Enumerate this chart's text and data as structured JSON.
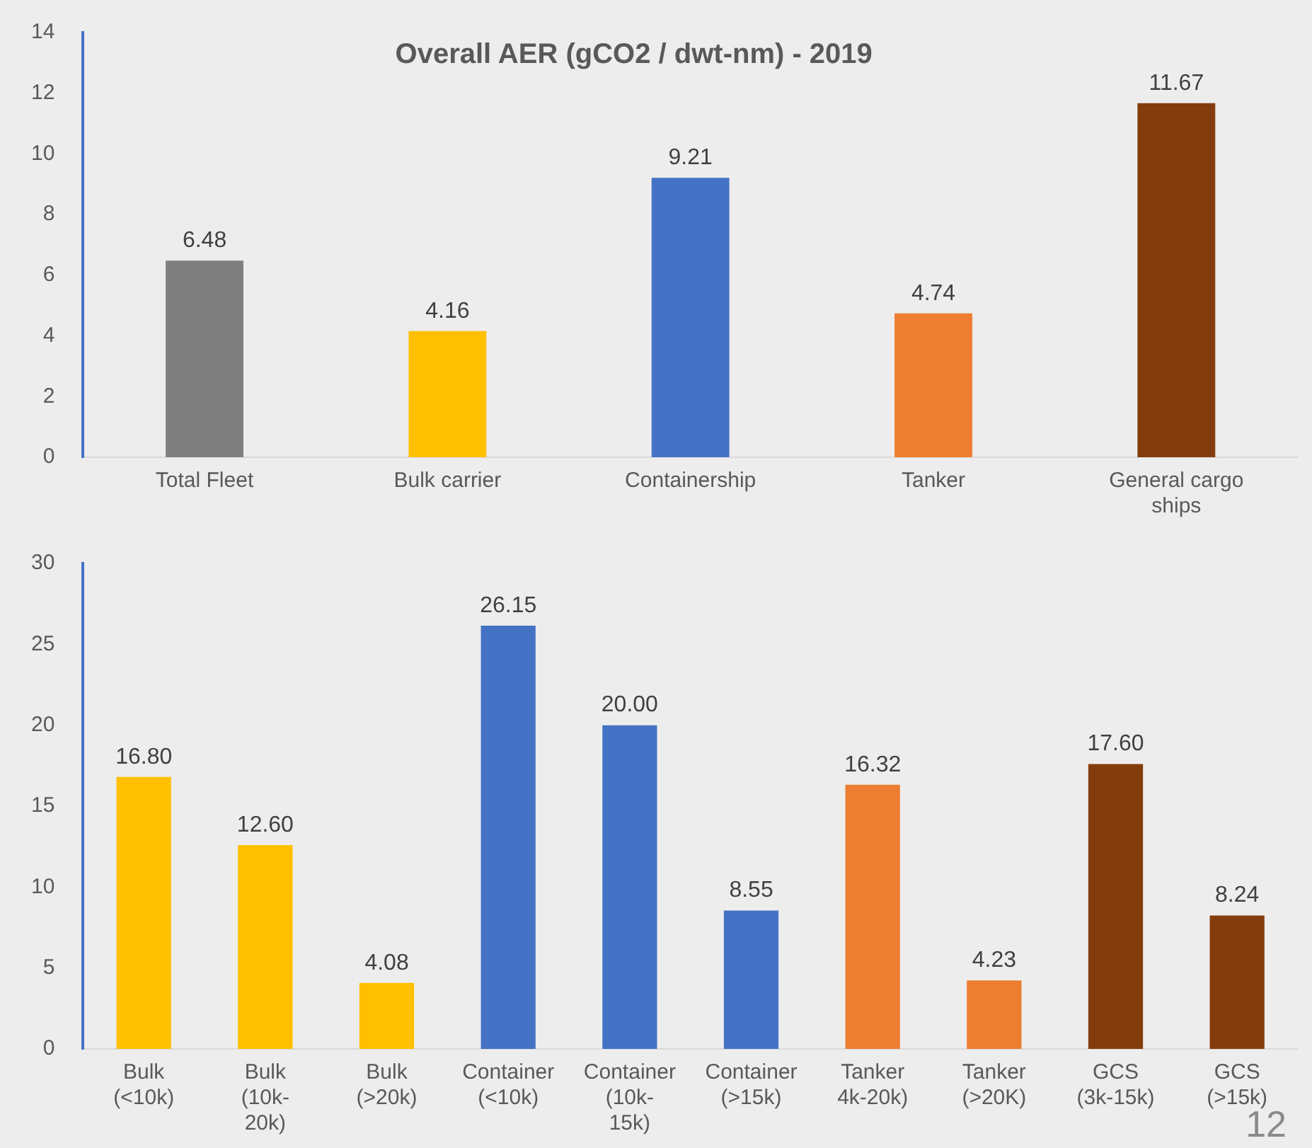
{
  "chart_data": [
    {
      "type": "bar",
      "title": "Overall AER (gCO2 / dwt-nm) - 2019",
      "categories": [
        "Total Fleet",
        "Bulk carrier",
        "Containership",
        "Tanker",
        "General cargo ships"
      ],
      "values": [
        6.48,
        4.16,
        9.21,
        4.74,
        11.67
      ],
      "colors": [
        "#7f7f7f",
        "#ffc000",
        "#4472c4",
        "#ed7d31",
        "#843c0c"
      ],
      "ylim": [
        0,
        14
      ],
      "yticks": [
        0,
        2,
        4,
        6,
        8,
        10,
        12,
        14
      ],
      "data_labels": true,
      "grid": false,
      "legend": false
    },
    {
      "type": "bar",
      "categories": [
        "Bulk (<10k)",
        "Bulk (10k-20k)",
        "Bulk (>20k)",
        "Container (<10k)",
        "Container (10k-15k)",
        "Container (>15k)",
        "Tanker 4k-20k)",
        "Tanker (>20K)",
        "GCS (3k-15k)",
        "GCS (>15k)"
      ],
      "values": [
        16.8,
        12.6,
        4.08,
        26.15,
        20.0,
        8.55,
        16.32,
        4.23,
        17.6,
        8.24
      ],
      "value_labels": [
        "16.80",
        "12.60",
        "4.08",
        "26.15",
        "20.00",
        "8.55",
        "16.32",
        "4.23",
        "17.60",
        "8.24"
      ],
      "colors": [
        "#ffc000",
        "#ffc000",
        "#ffc000",
        "#4472c4",
        "#4472c4",
        "#4472c4",
        "#ed7d31",
        "#ed7d31",
        "#843c0c",
        "#843c0c"
      ],
      "ylim": [
        0,
        30
      ],
      "yticks": [
        0,
        5,
        10,
        15,
        20,
        25,
        30
      ],
      "grid": false,
      "legend": false,
      "annotations": [
        "12"
      ]
    }
  ]
}
